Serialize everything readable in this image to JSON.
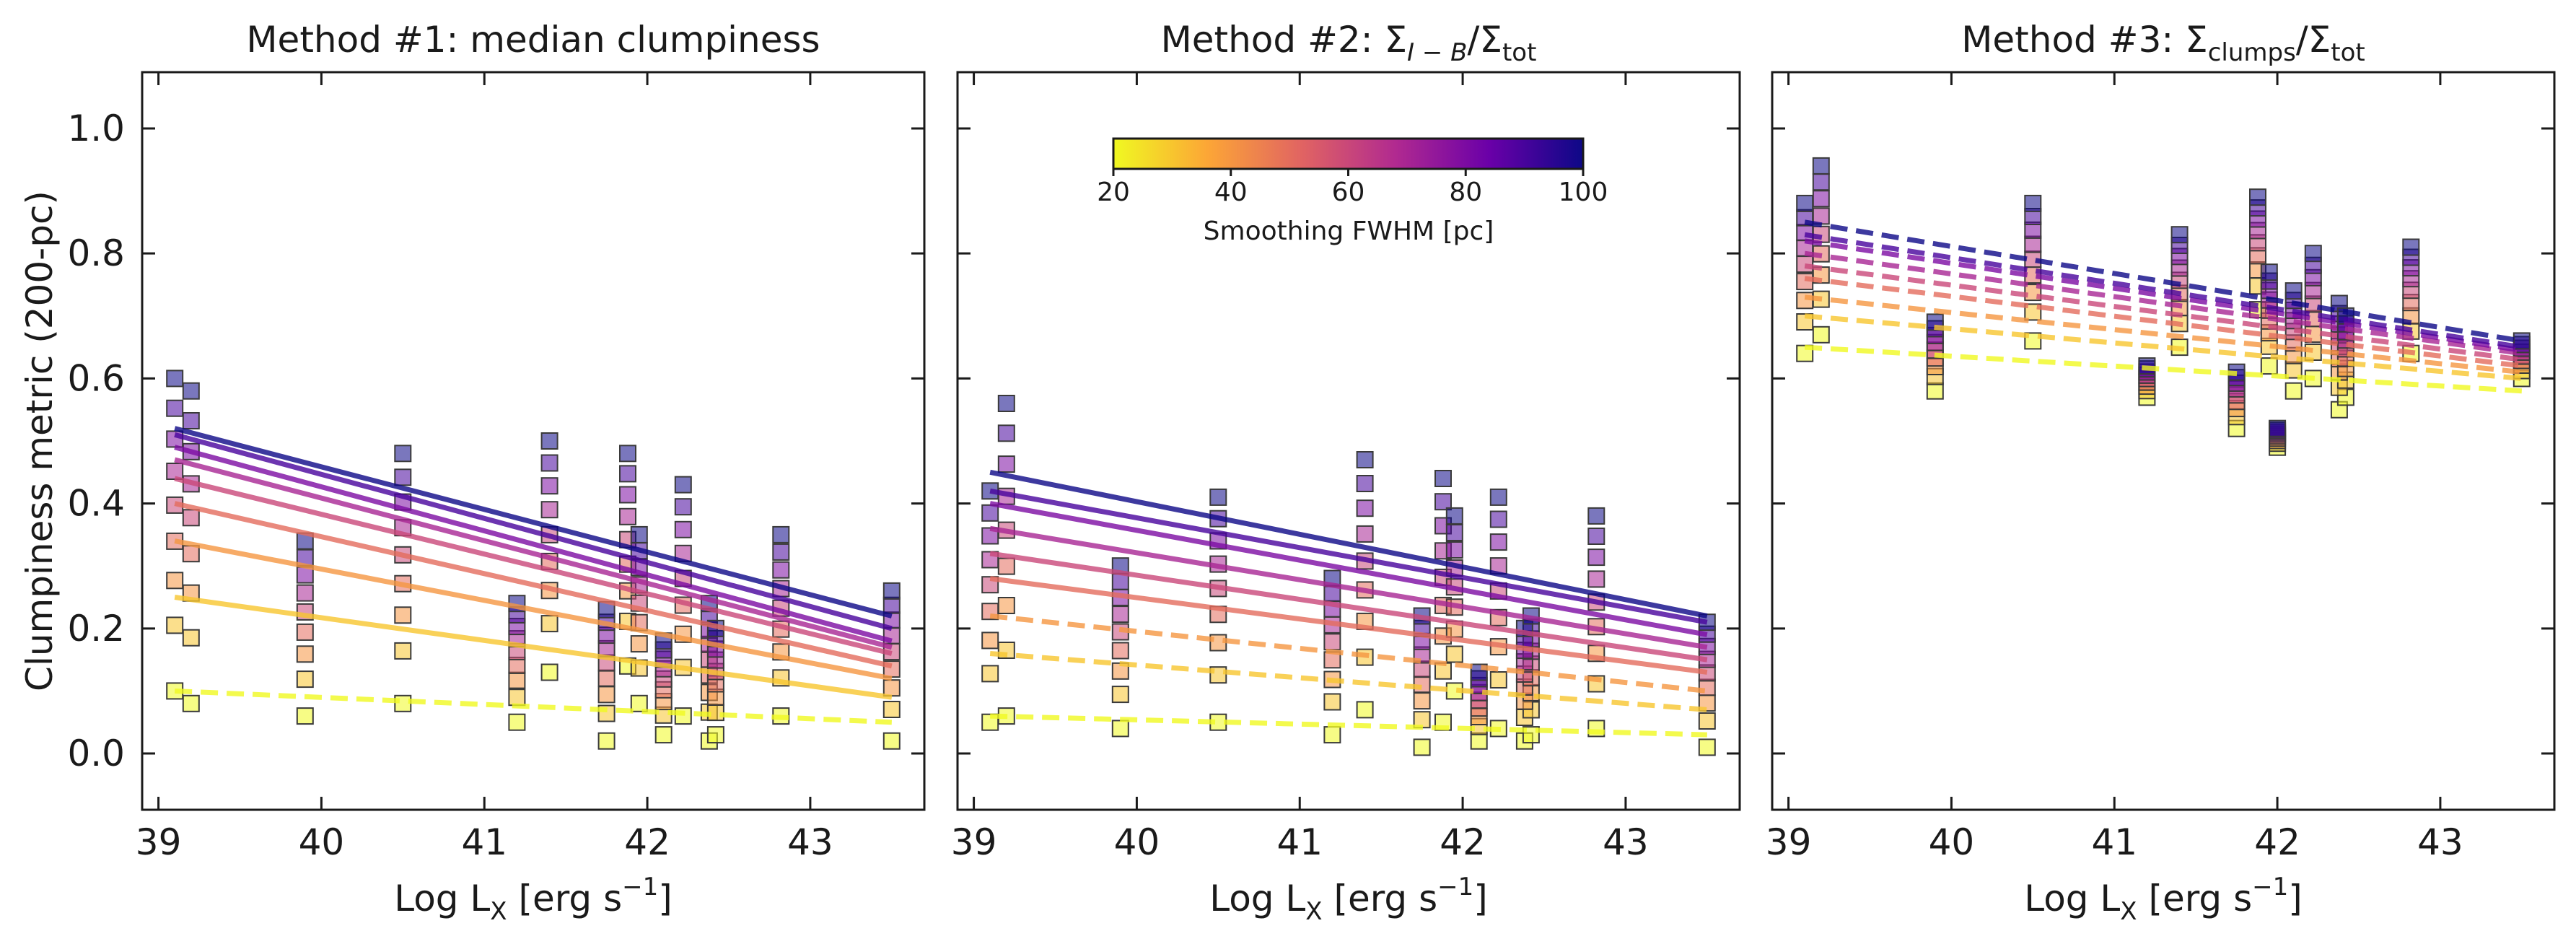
{
  "figure": {
    "ylabel": "Clumpiness metric (200-pc)",
    "xlabel_main": "Log L",
    "xlabel_sub": "X",
    "xlabel_units": " [erg s",
    "xlabel_exp": "−1",
    "xlabel_close": "]"
  },
  "colorbar": {
    "label": "Smoothing FWHM [pc]",
    "range": [
      20,
      100
    ],
    "ticks": [
      "20",
      "40",
      "60",
      "80",
      "100"
    ],
    "tick_values": [
      20,
      40,
      60,
      80,
      100
    ],
    "colormap": "plasma_r",
    "colors": [
      "#f0f921",
      "#f89540",
      "#cc4778",
      "#7e03a8",
      "#0d0887"
    ]
  },
  "panels": [
    {
      "title_prefix": "Method #1: ",
      "title_text": "median clumpiness"
    },
    {
      "title_prefix": "Method #2: ",
      "t_sigma1": "Σ",
      "t_sub1": "I − B",
      "t_slash": "/Σ",
      "t_sub2": "tot"
    },
    {
      "title_prefix": "Method #3: ",
      "t_sigma1": "Σ",
      "t_sub1": "clumps",
      "t_slash": "/Σ",
      "t_sub2": "tot"
    }
  ],
  "axes": {
    "x_ticks": [
      "39",
      "40",
      "41",
      "42",
      "43"
    ],
    "x_tick_values": [
      39,
      40,
      41,
      42,
      43
    ],
    "y_ticks": [
      "0.0",
      "0.2",
      "0.4",
      "0.6",
      "0.8",
      "1.0"
    ],
    "y_tick_values": [
      0,
      0.2,
      0.4,
      0.6,
      0.8,
      1.0
    ]
  },
  "chart_data": [
    {
      "type": "scatter",
      "title": "Method #1: median clumpiness",
      "xlabel": "Log L_X [erg s^-1]",
      "ylabel": "Clumpiness metric (200-pc)",
      "xlim": [
        38.9,
        43.7
      ],
      "ylim": [
        -0.09,
        1.09
      ],
      "galaxies_logLx": [
        39.1,
        39.2,
        39.9,
        40.5,
        41.2,
        41.4,
        41.75,
        41.88,
        41.95,
        42.1,
        42.22,
        42.38,
        42.42,
        42.82,
        43.5
      ],
      "fwhm_pc": [
        20,
        30,
        40,
        50,
        60,
        70,
        80,
        90,
        100
      ],
      "y_min_at_fwhm20": [
        0.1,
        0.08,
        0.06,
        0.08,
        0.05,
        0.13,
        0.02,
        0.14,
        0.08,
        0.03,
        0.06,
        0.02,
        0.03,
        0.06,
        0.02
      ],
      "y_max_at_fwhm100": [
        0.6,
        0.58,
        0.34,
        0.48,
        0.24,
        0.5,
        0.23,
        0.48,
        0.35,
        0.18,
        0.43,
        0.24,
        0.2,
        0.35,
        0.26
      ],
      "fit_lines": [
        {
          "fwhm": 20,
          "style": "dashed",
          "y_at_39_1": 0.1,
          "y_at_43_5": 0.05
        },
        {
          "fwhm": 30,
          "style": "solid",
          "y_at_39_1": 0.25,
          "y_at_43_5": 0.09
        },
        {
          "fwhm": 40,
          "style": "solid",
          "y_at_39_1": 0.34,
          "y_at_43_5": 0.12
        },
        {
          "fwhm": 50,
          "style": "solid",
          "y_at_39_1": 0.4,
          "y_at_43_5": 0.14
        },
        {
          "fwhm": 60,
          "style": "solid",
          "y_at_39_1": 0.44,
          "y_at_43_5": 0.16
        },
        {
          "fwhm": 70,
          "style": "solid",
          "y_at_39_1": 0.47,
          "y_at_43_5": 0.17
        },
        {
          "fwhm": 80,
          "style": "solid",
          "y_at_39_1": 0.49,
          "y_at_43_5": 0.18
        },
        {
          "fwhm": 90,
          "style": "solid",
          "y_at_39_1": 0.51,
          "y_at_43_5": 0.2
        },
        {
          "fwhm": 100,
          "style": "solid",
          "y_at_39_1": 0.52,
          "y_at_43_5": 0.22
        }
      ]
    },
    {
      "type": "scatter",
      "title": "Method #2: Σ_{I−B}/Σ_tot",
      "xlabel": "Log L_X [erg s^-1]",
      "xlim": [
        38.9,
        43.7
      ],
      "ylim": [
        -0.09,
        1.09
      ],
      "galaxies_logLx": [
        39.1,
        39.2,
        39.9,
        40.5,
        41.2,
        41.4,
        41.75,
        41.88,
        41.95,
        42.1,
        42.22,
        42.38,
        42.42,
        42.82,
        43.5
      ],
      "fwhm_pc": [
        20,
        30,
        40,
        50,
        60,
        70,
        80,
        90,
        100
      ],
      "y_min_at_fwhm20": [
        0.05,
        0.06,
        0.04,
        0.05,
        0.03,
        0.07,
        0.01,
        0.05,
        0.1,
        0.02,
        0.04,
        0.02,
        0.03,
        0.04,
        0.01
      ],
      "y_max_at_fwhm100": [
        0.42,
        0.56,
        0.3,
        0.41,
        0.28,
        0.47,
        0.22,
        0.44,
        0.38,
        0.13,
        0.41,
        0.2,
        0.22,
        0.38,
        0.21
      ],
      "fit_lines": [
        {
          "fwhm": 20,
          "style": "dashed",
          "y_at_39_1": 0.06,
          "y_at_43_5": 0.03
        },
        {
          "fwhm": 30,
          "style": "dashed",
          "y_at_39_1": 0.16,
          "y_at_43_5": 0.07
        },
        {
          "fwhm": 40,
          "style": "dashed",
          "y_at_39_1": 0.22,
          "y_at_43_5": 0.1
        },
        {
          "fwhm": 50,
          "style": "solid",
          "y_at_39_1": 0.28,
          "y_at_43_5": 0.13
        },
        {
          "fwhm": 60,
          "style": "solid",
          "y_at_39_1": 0.32,
          "y_at_43_5": 0.15
        },
        {
          "fwhm": 70,
          "style": "solid",
          "y_at_39_1": 0.36,
          "y_at_43_5": 0.17
        },
        {
          "fwhm": 80,
          "style": "solid",
          "y_at_39_1": 0.4,
          "y_at_43_5": 0.19
        },
        {
          "fwhm": 90,
          "style": "solid",
          "y_at_39_1": 0.42,
          "y_at_43_5": 0.21
        },
        {
          "fwhm": 100,
          "style": "solid",
          "y_at_39_1": 0.45,
          "y_at_43_5": 0.22
        }
      ]
    },
    {
      "type": "scatter",
      "title": "Method #3: Σ_clumps/Σ_tot",
      "xlabel": "Log L_X [erg s^-1]",
      "xlim": [
        38.9,
        43.7
      ],
      "ylim": [
        -0.09,
        1.09
      ],
      "galaxies_logLx": [
        39.1,
        39.2,
        39.9,
        40.5,
        41.2,
        41.4,
        41.75,
        41.88,
        41.95,
        42.0,
        42.1,
        42.22,
        42.38,
        42.42,
        42.82,
        43.5
      ],
      "fwhm_pc": [
        20,
        30,
        40,
        50,
        60,
        70,
        80,
        90,
        100
      ],
      "y_min_at_fwhm20": [
        0.64,
        0.67,
        0.58,
        0.66,
        0.57,
        0.65,
        0.52,
        0.71,
        0.62,
        0.49,
        0.58,
        0.6,
        0.55,
        0.57,
        0.64,
        0.6
      ],
      "y_max_at_fwhm100": [
        0.88,
        0.94,
        0.69,
        0.88,
        0.62,
        0.83,
        0.61,
        0.89,
        0.77,
        0.52,
        0.74,
        0.8,
        0.72,
        0.7,
        0.81,
        0.66
      ],
      "fit_lines": [
        {
          "fwhm": 20,
          "style": "dashed",
          "y_at_39_1": 0.65,
          "y_at_43_5": 0.58
        },
        {
          "fwhm": 30,
          "style": "dashed",
          "y_at_39_1": 0.7,
          "y_at_43_5": 0.6
        },
        {
          "fwhm": 40,
          "style": "dashed",
          "y_at_39_1": 0.73,
          "y_at_43_5": 0.61
        },
        {
          "fwhm": 50,
          "style": "dashed",
          "y_at_39_1": 0.76,
          "y_at_43_5": 0.62
        },
        {
          "fwhm": 60,
          "style": "dashed",
          "y_at_39_1": 0.78,
          "y_at_43_5": 0.63
        },
        {
          "fwhm": 70,
          "style": "dashed",
          "y_at_39_1": 0.8,
          "y_at_43_5": 0.64
        },
        {
          "fwhm": 80,
          "style": "dashed",
          "y_at_39_1": 0.82,
          "y_at_43_5": 0.645
        },
        {
          "fwhm": 90,
          "style": "dashed",
          "y_at_39_1": 0.83,
          "y_at_43_5": 0.65
        },
        {
          "fwhm": 100,
          "style": "dashed",
          "y_at_39_1": 0.85,
          "y_at_43_5": 0.66
        }
      ]
    }
  ]
}
